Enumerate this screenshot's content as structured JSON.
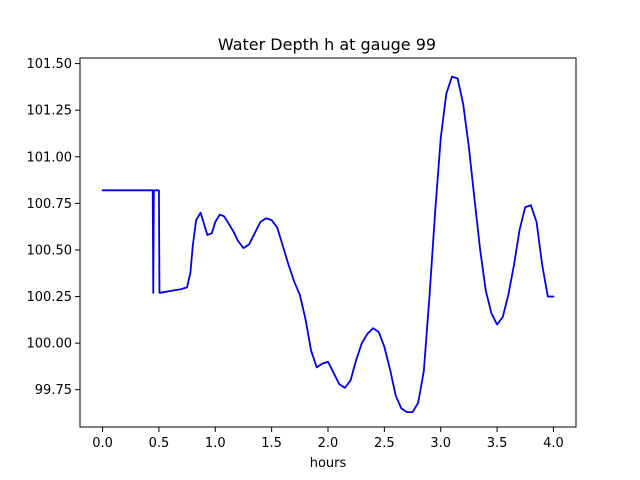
{
  "chart_data": {
    "type": "line",
    "title": "Water Depth h at gauge 99",
    "xlabel": "hours",
    "ylabel": "",
    "xlim": [
      -0.2,
      4.2
    ],
    "ylim": [
      99.55,
      101.53
    ],
    "xticks": [
      0.0,
      0.5,
      1.0,
      1.5,
      2.0,
      2.5,
      3.0,
      3.5,
      4.0
    ],
    "xtick_labels": [
      "0.0",
      "0.5",
      "1.0",
      "1.5",
      "2.0",
      "2.5",
      "3.0",
      "3.5",
      "4.0"
    ],
    "yticks": [
      99.75,
      100.0,
      100.25,
      100.5,
      100.75,
      101.0,
      101.25,
      101.5
    ],
    "ytick_labels": [
      "99.75",
      "100.00",
      "100.25",
      "100.50",
      "100.75",
      "101.00",
      "101.25",
      "101.50"
    ],
    "grid": false,
    "series": [
      {
        "color": "#0000ee",
        "x": [
          0.0,
          0.2,
          0.44,
          0.445,
          0.45,
          0.455,
          0.46,
          0.49,
          0.495,
          0.5,
          0.505,
          0.51,
          0.6,
          0.7,
          0.75,
          0.78,
          0.8,
          0.83,
          0.87,
          0.9,
          0.93,
          0.97,
          1.0,
          1.04,
          1.08,
          1.12,
          1.16,
          1.2,
          1.25,
          1.3,
          1.35,
          1.4,
          1.45,
          1.5,
          1.55,
          1.6,
          1.65,
          1.7,
          1.75,
          1.8,
          1.85,
          1.9,
          1.95,
          2.0,
          2.05,
          2.1,
          2.15,
          2.2,
          2.25,
          2.3,
          2.35,
          2.4,
          2.45,
          2.5,
          2.55,
          2.6,
          2.65,
          2.7,
          2.75,
          2.8,
          2.85,
          2.9,
          2.95,
          3.0,
          3.05,
          3.1,
          3.15,
          3.2,
          3.25,
          3.3,
          3.35,
          3.4,
          3.45,
          3.5,
          3.55,
          3.6,
          3.65,
          3.7,
          3.75,
          3.8,
          3.85,
          3.9,
          3.95,
          4.0
        ],
        "y": [
          100.82,
          100.82,
          100.82,
          100.82,
          100.27,
          100.82,
          100.82,
          100.82,
          100.82,
          100.82,
          100.27,
          100.27,
          100.28,
          100.29,
          100.3,
          100.38,
          100.52,
          100.66,
          100.7,
          100.64,
          100.58,
          100.59,
          100.65,
          100.69,
          100.68,
          100.64,
          100.6,
          100.55,
          100.51,
          100.53,
          100.59,
          100.65,
          100.67,
          100.66,
          100.62,
          100.52,
          100.42,
          100.33,
          100.26,
          100.13,
          99.96,
          99.87,
          99.89,
          99.9,
          99.84,
          99.78,
          99.76,
          99.8,
          99.91,
          100.0,
          100.05,
          100.08,
          100.06,
          99.98,
          99.86,
          99.72,
          99.65,
          99.63,
          99.63,
          99.68,
          99.85,
          100.25,
          100.7,
          101.1,
          101.34,
          101.43,
          101.42,
          101.28,
          101.05,
          100.77,
          100.5,
          100.28,
          100.16,
          100.1,
          100.14,
          100.26,
          100.42,
          100.61,
          100.73,
          100.74,
          100.65,
          100.42,
          100.25,
          100.25
        ]
      }
    ]
  }
}
